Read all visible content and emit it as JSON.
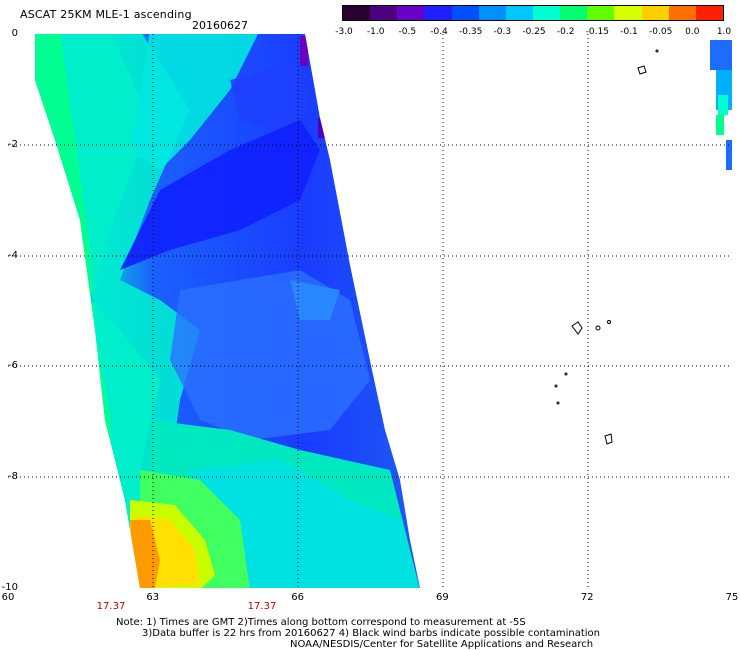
{
  "header": {
    "title": "ASCAT 25KM MLE-1 ascending",
    "date": "20160627"
  },
  "colorbar": {
    "labels": [
      "-3.0",
      "-1.0",
      "-0.5",
      "-0.4",
      "-0.35",
      "-0.3",
      "-0.25",
      "-0.2",
      "-0.15",
      "-0.1",
      "-0.05",
      "0.0",
      "1.0"
    ],
    "colors": [
      "#2a0030",
      "#4b0080",
      "#6a00c8",
      "#2020ff",
      "#0050ff",
      "#0090ff",
      "#00c8ff",
      "#00ffd0",
      "#00ff70",
      "#60ff00",
      "#d8ff00",
      "#ffd000",
      "#ff7000",
      "#ff2000"
    ]
  },
  "axes": {
    "x_ticks": [
      "60",
      "63",
      "66",
      "69",
      "72",
      "75"
    ],
    "y_ticks": [
      "0",
      "-2",
      "-4",
      "-6",
      "-8",
      "-10"
    ],
    "grid": true
  },
  "swath": {
    "time_labels": [
      "17.37",
      "17.37"
    ]
  },
  "footer": {
    "note_line1": "Note: 1) Times are GMT 2)Times along bottom correspond to measurement at -5S",
    "note_line2": "3)Data buffer is 22 hrs from 20160627 4) Black wind barbs indicate possible contamination",
    "credit": "NOAA/NESDIS/Center for Satellite Applications and Research"
  }
}
